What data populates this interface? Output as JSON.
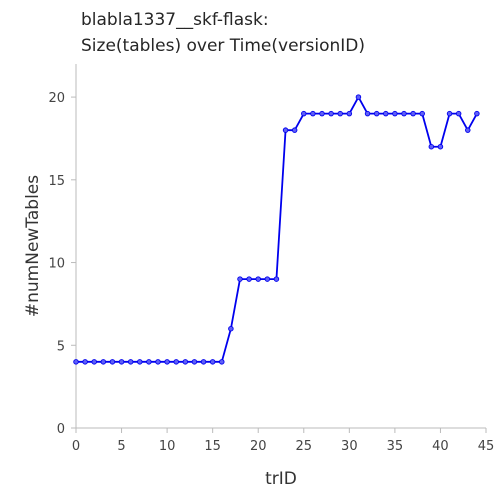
{
  "chart_data": {
    "type": "line",
    "title": [
      "blabla1337__skf-flask:",
      "Size(tables) over Time(versionID)"
    ],
    "xlabel": "trID",
    "ylabel": "#numNewTables",
    "xlim": [
      0,
      45
    ],
    "ylim": [
      0,
      22
    ],
    "xticks": [
      0,
      5,
      10,
      15,
      20,
      25,
      30,
      35,
      40,
      45
    ],
    "yticks": [
      0,
      5,
      10,
      15,
      20
    ],
    "grid": false,
    "legend": "none",
    "series": [
      {
        "color": "#0000ee",
        "marker": "circle",
        "x": [
          0,
          1,
          2,
          3,
          4,
          5,
          6,
          7,
          8,
          9,
          10,
          11,
          12,
          13,
          14,
          15,
          16,
          17,
          18,
          19,
          20,
          21,
          22,
          23,
          24,
          25,
          26,
          27,
          28,
          29,
          30,
          31,
          32,
          33,
          34,
          35,
          36,
          37,
          38,
          39,
          40,
          41,
          42,
          43,
          44
        ],
        "y": [
          4,
          4,
          4,
          4,
          4,
          4,
          4,
          4,
          4,
          4,
          4,
          4,
          4,
          4,
          4,
          4,
          4,
          6,
          9,
          9,
          9,
          9,
          9,
          18,
          18,
          19,
          19,
          19,
          19,
          19,
          19,
          20,
          19,
          19,
          19,
          19,
          19,
          19,
          19,
          17,
          17,
          19,
          19,
          18,
          19
        ]
      }
    ]
  }
}
